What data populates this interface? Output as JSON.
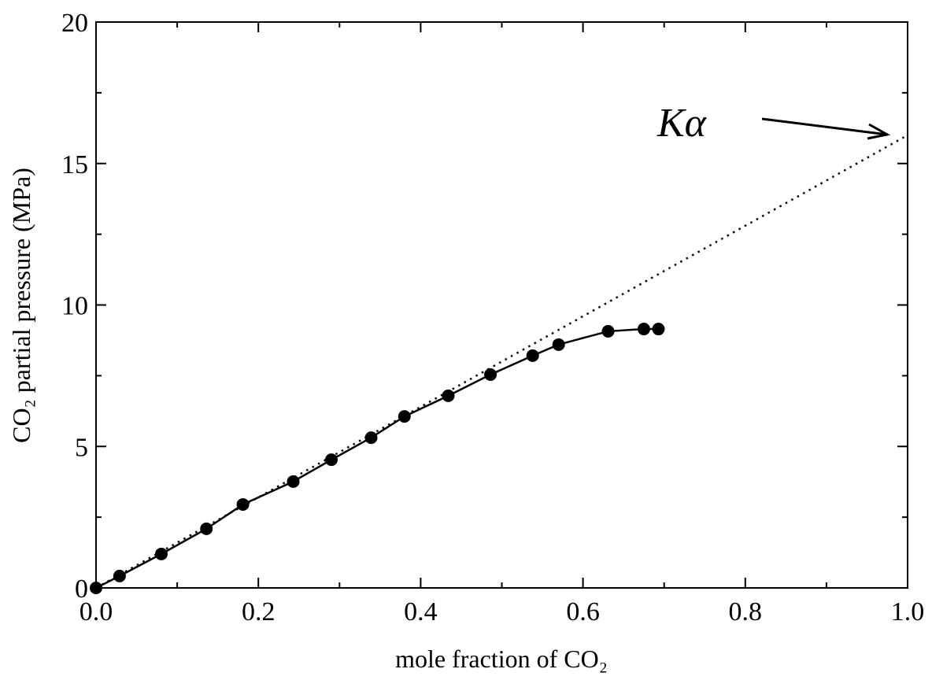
{
  "chart_data": {
    "type": "line",
    "xlabel": "mole fraction of CO₂",
    "ylabel": "CO₂ partial pressure (MPa)",
    "annotation": "Kα",
    "series": [
      {
        "color": "#000000",
        "marker": true,
        "dash": "solid",
        "x": [
          0,
          0.029,
          0.0805,
          0.136,
          0.181,
          0.243,
          0.29,
          0.339,
          0.38,
          0.434,
          0.486,
          0.538,
          0.57,
          0.631,
          0.675,
          0.693
        ],
        "values": [
          0,
          0.42,
          1.2,
          2.09,
          2.95,
          3.76,
          4.53,
          5.31,
          6.06,
          6.79,
          7.54,
          8.21,
          8.6,
          9.07,
          9.15,
          9.15
        ]
      },
      {
        "color": "#000000",
        "marker": false,
        "dash": "dotted",
        "x": [
          0,
          1
        ],
        "values": [
          0,
          16
        ]
      }
    ],
    "xlim": [
      0,
      1
    ],
    "ylim": [
      0,
      20
    ],
    "xticks": [
      {
        "value": 0,
        "label": "0.0"
      },
      0.2,
      0.4,
      0.6,
      0.8,
      {
        "value": 1,
        "label": "1.0"
      }
    ],
    "yticks": [
      0,
      5,
      10,
      15,
      20
    ],
    "xminorticks": [
      0.1,
      0.3,
      0.5,
      0.7,
      0.9
    ],
    "yminorticks": [
      2.5,
      7.5,
      12.5,
      17.5
    ]
  }
}
